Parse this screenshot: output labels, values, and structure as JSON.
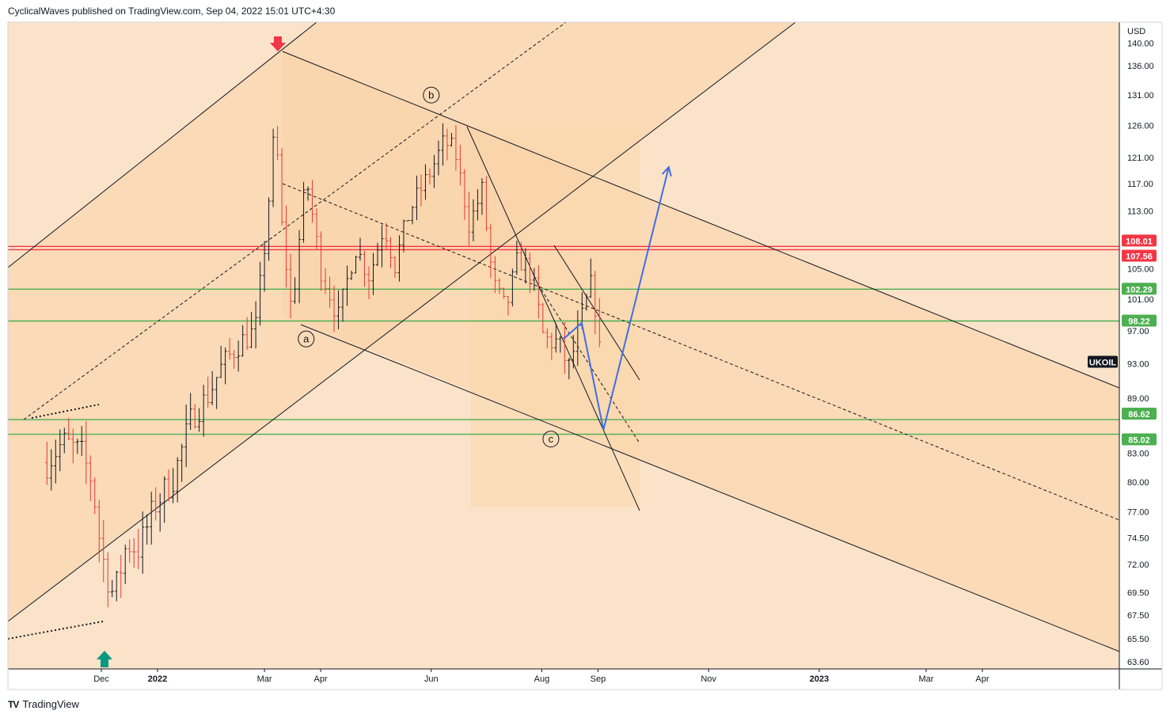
{
  "header": {
    "text": "CyclicalWaves published on TradingView.com, Sep 04, 2022 15:01 UTC+4:30"
  },
  "footer": {
    "logo": "TV",
    "text": "TradingView"
  },
  "colors": {
    "background": "#fbe3c9",
    "channel_fill": "#fad4a8",
    "up": "#131722",
    "down": "#e53935",
    "red_line": "#f23645",
    "green_line": "#4caf50",
    "projection": "#3f6fe0"
  },
  "chart_data": {
    "type": "candlestick",
    "symbol": "UKOIL",
    "currency": "USD",
    "y_ticks": [
      "140.00",
      "136.00",
      "131.00",
      "126.00",
      "121.00",
      "117.00",
      "113.00",
      "105.00",
      "101.00",
      "97.00",
      "93.00",
      "89.00",
      "83.00",
      "80.00",
      "77.00",
      "74.50",
      "72.00",
      "69.50",
      "67.50",
      "65.50",
      "63.60"
    ],
    "x_ticks": [
      {
        "label": "Dec",
        "date": "2021-12-01",
        "bold": false
      },
      {
        "label": "2022",
        "date": "2022-01-01",
        "bold": true
      },
      {
        "label": "Mar",
        "date": "2022-03-01",
        "bold": false
      },
      {
        "label": "Apr",
        "date": "2022-04-01",
        "bold": false
      },
      {
        "label": "Jun",
        "date": "2022-06-01",
        "bold": false
      },
      {
        "label": "Aug",
        "date": "2022-08-01",
        "bold": false
      },
      {
        "label": "Sep",
        "date": "2022-09-01",
        "bold": false
      },
      {
        "label": "Nov",
        "date": "2022-11-01",
        "bold": false
      },
      {
        "label": "2023",
        "date": "2023-01-01",
        "bold": true
      },
      {
        "label": "Mar",
        "date": "2023-03-01",
        "bold": false
      },
      {
        "label": "Apr",
        "date": "2023-04-01",
        "bold": false
      }
    ],
    "price_levels": [
      {
        "label": "108.01",
        "value": 108.01,
        "color": "#f23645"
      },
      {
        "label": "107.56",
        "value": 107.56,
        "color": "#f23645"
      },
      {
        "label": "102.29",
        "value": 102.29,
        "color": "#4caf50"
      },
      {
        "label": "98.22",
        "value": 98.22,
        "color": "#4caf50"
      },
      {
        "label": "86.62",
        "value": 86.62,
        "color": "#4caf50"
      },
      {
        "label": "85.02",
        "value": 85.02,
        "color": "#4caf50"
      }
    ],
    "last_price_label": "UKOIL",
    "wave_labels": [
      {
        "text": "a",
        "date": "2022-03-24",
        "price": 96.0
      },
      {
        "text": "b",
        "date": "2022-06-01",
        "price": 131.0
      },
      {
        "text": "c",
        "date": "2022-08-06",
        "price": 84.5
      }
    ],
    "series": [
      {
        "name": "UKOIL",
        "anchors": [
          [
            "2021-11-01",
            82.0
          ],
          [
            "2021-11-10",
            84.2
          ],
          [
            "2021-11-20",
            83.0
          ],
          [
            "2021-11-26",
            80.0
          ],
          [
            "2021-12-01",
            73.0
          ],
          [
            "2021-12-08",
            69.0
          ],
          [
            "2021-12-15",
            74.0
          ],
          [
            "2021-12-22",
            73.5
          ],
          [
            "2021-12-31",
            77.8
          ],
          [
            "2022-01-10",
            80.5
          ],
          [
            "2022-01-20",
            87.0
          ],
          [
            "2022-01-28",
            89.0
          ],
          [
            "2022-02-05",
            92.5
          ],
          [
            "2022-02-15",
            95.5
          ],
          [
            "2022-02-24",
            97.0
          ],
          [
            "2022-03-02",
            110.0
          ],
          [
            "2022-03-07",
            127.0
          ],
          [
            "2022-03-10",
            112.0
          ],
          [
            "2022-03-16",
            99.0
          ],
          [
            "2022-03-24",
            118.0
          ],
          [
            "2022-04-01",
            105.0
          ],
          [
            "2022-04-11",
            98.5
          ],
          [
            "2022-04-20",
            108.0
          ],
          [
            "2022-04-28",
            104.0
          ],
          [
            "2022-05-06",
            111.0
          ],
          [
            "2022-05-12",
            105.5
          ],
          [
            "2022-05-20",
            113.0
          ],
          [
            "2022-05-26",
            116.0
          ],
          [
            "2022-06-01",
            119.0
          ],
          [
            "2022-06-08",
            123.5
          ],
          [
            "2022-06-14",
            122.0
          ],
          [
            "2022-06-22",
            111.0
          ],
          [
            "2022-06-29",
            116.0
          ],
          [
            "2022-07-05",
            103.0
          ],
          [
            "2022-07-12",
            99.5
          ],
          [
            "2022-07-19",
            106.5
          ],
          [
            "2022-07-26",
            104.5
          ],
          [
            "2022-08-02",
            96.0
          ],
          [
            "2022-08-10",
            95.5
          ],
          [
            "2022-08-16",
            92.5
          ],
          [
            "2022-08-22",
            97.5
          ],
          [
            "2022-08-29",
            103.5
          ],
          [
            "2022-09-02",
            94.0
          ]
        ]
      }
    ],
    "projection_path": [
      [
        "2022-08-13",
        96.0
      ],
      [
        "2022-08-23",
        98.0
      ],
      [
        "2022-09-04",
        85.5
      ],
      [
        "2022-10-10",
        119.5
      ]
    ],
    "ylim": [
      63.6,
      142.0
    ],
    "xlim": [
      "2021-10-28",
      "2023-06-20"
    ]
  }
}
